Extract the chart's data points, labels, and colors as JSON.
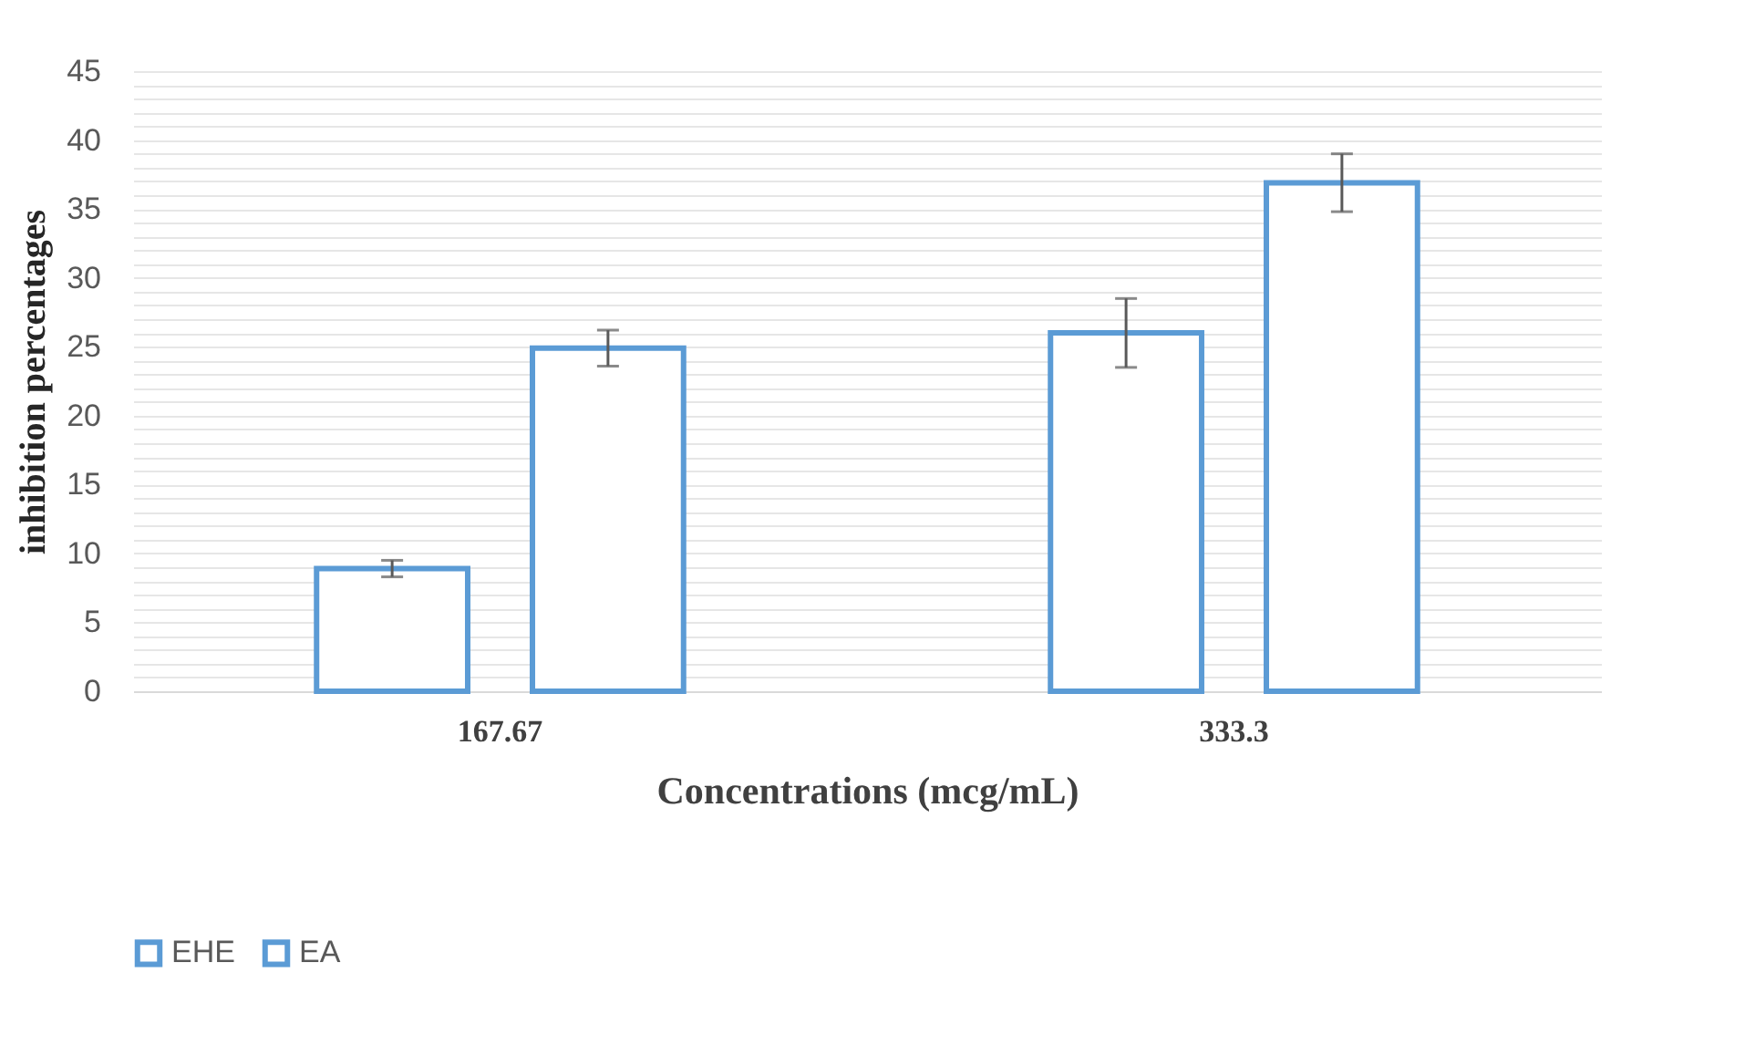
{
  "chart_data": {
    "type": "bar",
    "xlabel": "Concentrations (mcg/mL)",
    "ylabel": "inhibition percentages",
    "categories": [
      "167.67",
      "333.3"
    ],
    "series": [
      {
        "name": "EHE",
        "color": "#5b9bd5",
        "values": [
          8.9,
          26.0
        ],
        "errors": [
          0.6,
          2.5
        ]
      },
      {
        "name": "EA",
        "color": "#5b9bd5",
        "values": [
          24.9,
          36.9
        ],
        "errors": [
          1.3,
          2.1
        ]
      }
    ],
    "ylim": [
      0,
      45
    ],
    "yticks": [
      0,
      {
        "value": 1,
        "label": null
      },
      {
        "value": 2,
        "label": null
      },
      {
        "value": 3,
        "label": null
      },
      {
        "value": 4,
        "label": null
      },
      5,
      {
        "value": 6,
        "label": null
      },
      {
        "value": 7,
        "label": null
      },
      {
        "value": 8,
        "label": null
      },
      {
        "value": 9,
        "label": null
      },
      10,
      {
        "value": 11,
        "label": null
      },
      {
        "value": 12,
        "label": null
      },
      {
        "value": 13,
        "label": null
      },
      {
        "value": 14,
        "label": null
      },
      15,
      {
        "value": 16,
        "label": null
      },
      {
        "value": 17,
        "label": null
      },
      {
        "value": 18,
        "label": null
      },
      {
        "value": 19,
        "label": null
      },
      20,
      {
        "value": 21,
        "label": null
      },
      {
        "value": 22,
        "label": null
      },
      {
        "value": 23,
        "label": null
      },
      {
        "value": 24,
        "label": null
      },
      25,
      {
        "value": 26,
        "label": null
      },
      {
        "value": 27,
        "label": null
      },
      {
        "value": 28,
        "label": null
      },
      {
        "value": 29,
        "label": null
      },
      30,
      {
        "value": 31,
        "label": null
      },
      {
        "value": 32,
        "label": null
      },
      {
        "value": 33,
        "label": null
      },
      {
        "value": 34,
        "label": null
      },
      35,
      {
        "value": 36,
        "label": null
      },
      {
        "value": 37,
        "label": null
      },
      {
        "value": 38,
        "label": null
      },
      {
        "value": 39,
        "label": null
      },
      40,
      {
        "value": 41,
        "label": null
      },
      {
        "value": 42,
        "label": null
      },
      {
        "value": 43,
        "label": null
      },
      {
        "value": 44,
        "label": null
      },
      45
    ],
    "grid": "y",
    "legend": "bottom"
  }
}
